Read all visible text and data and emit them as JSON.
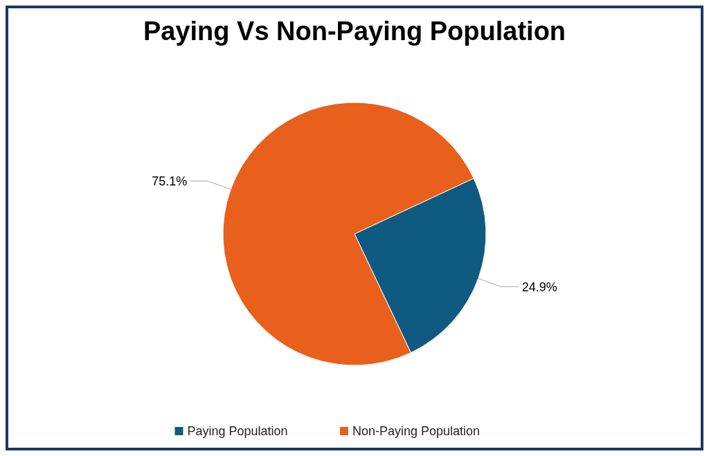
{
  "chart_data": {
    "type": "pie",
    "title": "Paying Vs Non-Paying Population",
    "categories": [
      "Paying Population",
      "Non-Paying Population"
    ],
    "values": [
      24.9,
      75.1
    ],
    "colors": [
      "#0f5a80",
      "#e8601c"
    ],
    "value_labels": [
      "24.9%",
      "75.1%"
    ],
    "legend": "bottom"
  }
}
